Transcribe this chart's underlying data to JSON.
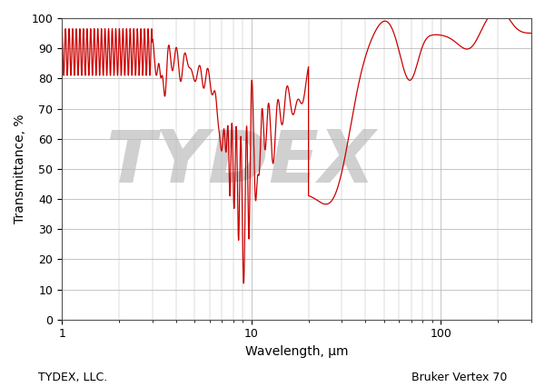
{
  "title": "",
  "xlabel": "Wavelength, μm",
  "ylabel": "Transmittance, %",
  "xlim": [
    1,
    300
  ],
  "ylim": [
    0,
    100
  ],
  "yticks": [
    0,
    10,
    20,
    30,
    40,
    50,
    60,
    70,
    80,
    90,
    100
  ],
  "line_color": "#CC0000",
  "background_color": "#ffffff",
  "grid_color": "#bbbbbb",
  "footer_left": "TYDEX, LLC.",
  "footer_right": "Bruker Vertex 70",
  "watermark_text": "TYDEX",
  "fig_width": 6.0,
  "fig_height": 4.26,
  "dpi": 100
}
